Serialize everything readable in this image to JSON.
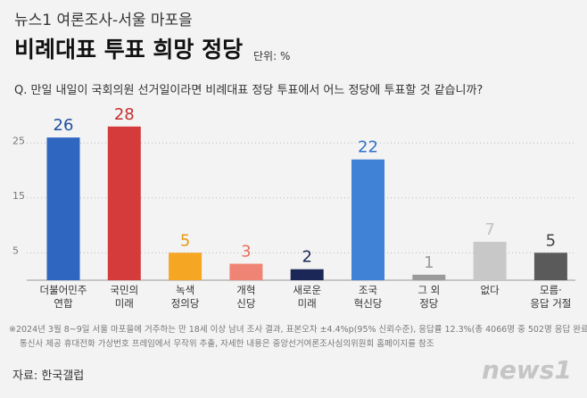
{
  "supertitle": "뉴스1 여론조사-서울 마포을",
  "unit": "단위: %",
  "question": "Q. 만일 내일이 국회의원 선거일이라면 비례대표 정당 투표에서 어느 정당에 투표할 것 같습니까?",
  "footnote": [
    "※2024년 3월 8~9일 서울 마포을에 거주하는 만 18세 이상 남녀 조사 결과, 표본오차 ±4.4%p(95% 신뢰수준), 응답률 12.3%(총 4066명 중 502명 응답 완료),",
    "통신사 제공 휴대전화 가상번호 프레임에서 무작위 추출, 자세한 내용은 중앙선거여론조사심의위원회 홈페이지를 참조"
  ],
  "source": "자료: 한국갤럽",
  "logo": "news1",
  "chart_data": {
    "type": "bar",
    "title": "비례대표 투표 희망 정당",
    "categories": [
      "더불어민주\n연합",
      "국민의\n미래",
      "녹색\n정의당",
      "개혁\n신당",
      "새로운\n미래",
      "조국\n혁신당",
      "그 외\n정당",
      "없다",
      "모름·\n응답 거절"
    ],
    "values": [
      26,
      28,
      5,
      3,
      2,
      22,
      1,
      7,
      5
    ],
    "colors": [
      "#2f66c0",
      "#d63b3b",
      "#f5a623",
      "#f08474",
      "#1b2756",
      "#3f82d6",
      "#9a9a9a",
      "#c8c8c8",
      "#5a5a5a"
    ],
    "label_colors": [
      "#1f4f9e",
      "#c62f2f",
      "#e69a10",
      "#e8705e",
      "#1b2756",
      "#2f72c8",
      "#9a9a9a",
      "#c0c0c0",
      "#444444"
    ],
    "ylim": [
      0,
      30
    ],
    "yticks": [
      5,
      15,
      25
    ],
    "grid": true
  }
}
